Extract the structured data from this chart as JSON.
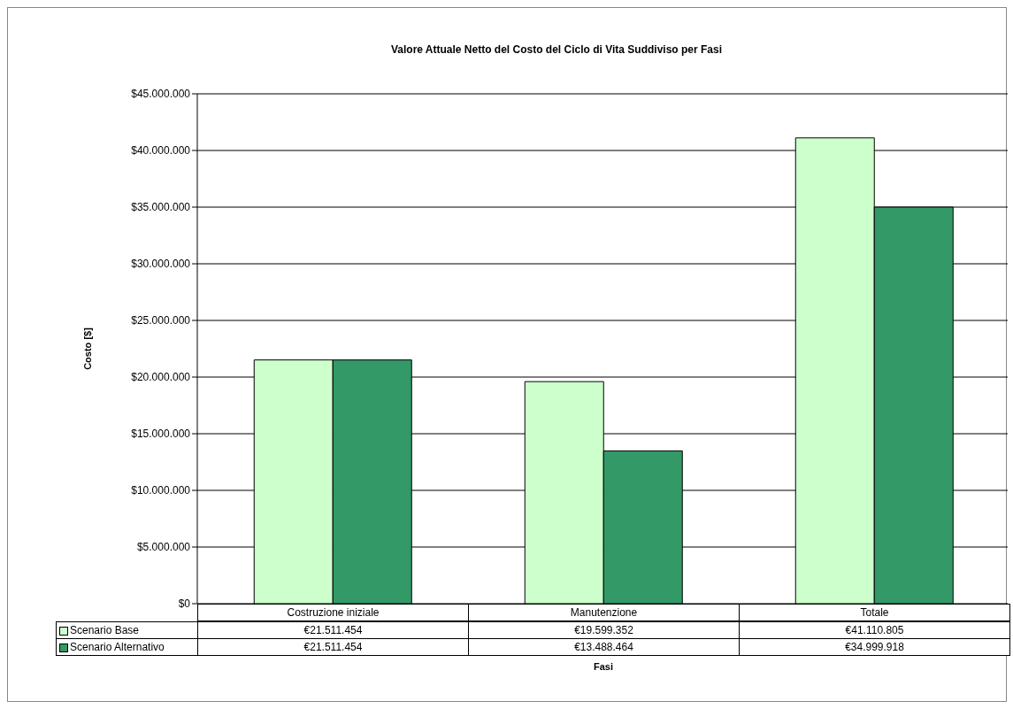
{
  "chart_data": {
    "type": "bar",
    "title": "Valore Attuale Netto del Costo del Ciclo di Vita Suddiviso per Fasi",
    "xlabel": "Fasi",
    "ylabel": "Costo [$]",
    "categories": [
      "Costruzione iniziale",
      "Manutenzione",
      "Totale"
    ],
    "series": [
      {
        "name": "Scenario Base",
        "color": "#ccffcc",
        "values": [
          21511454,
          19599352,
          41110805
        ],
        "value_labels": [
          "€21.511.454",
          "€19.599.352",
          "€41.110.805"
        ]
      },
      {
        "name": "Scenario Alternativo",
        "color": "#339966",
        "values": [
          21511454,
          13488464,
          34999918
        ],
        "value_labels": [
          "€21.511.454",
          "€13.488.464",
          "€34.999.918"
        ]
      }
    ],
    "ylim": [
      0,
      45000000
    ],
    "yticks": [
      {
        "value": 0,
        "label": "$0"
      },
      {
        "value": 5000000,
        "label": "$5.000.000"
      },
      {
        "value": 10000000,
        "label": "$10.000.000"
      },
      {
        "value": 15000000,
        "label": "$15.000.000"
      },
      {
        "value": 20000000,
        "label": "$20.000.000"
      },
      {
        "value": 25000000,
        "label": "$25.000.000"
      },
      {
        "value": 30000000,
        "label": "$30.000.000"
      },
      {
        "value": 35000000,
        "label": "$35.000.000"
      },
      {
        "value": 40000000,
        "label": "$40.000.000"
      },
      {
        "value": 45000000,
        "label": "$45.000.000"
      }
    ],
    "grid": "y",
    "legend": "bottom left"
  }
}
